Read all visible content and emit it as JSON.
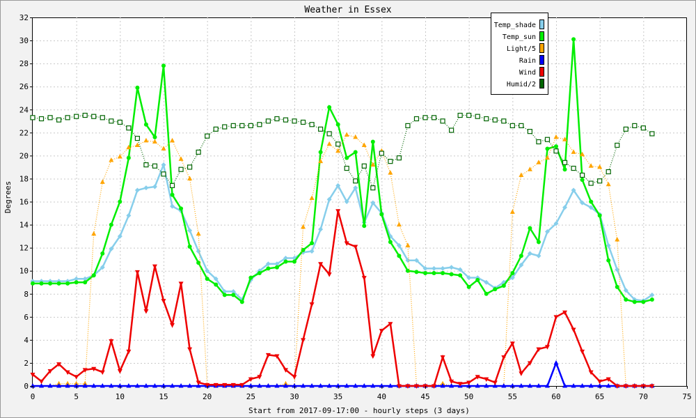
{
  "chart_data": {
    "type": "line",
    "title": "Weather in Essex",
    "xlabel": "Start from 2017-09-17:00 - hourly steps (3 days)",
    "ylabel": "Degrees",
    "xlim": [
      0,
      75
    ],
    "ylim": [
      0,
      32
    ],
    "xticks": [
      0,
      5,
      10,
      15,
      20,
      25,
      30,
      35,
      40,
      45,
      50,
      55,
      60,
      65,
      70,
      75
    ],
    "yticks": [
      0,
      2,
      4,
      6,
      8,
      10,
      12,
      14,
      16,
      18,
      20,
      22,
      24,
      26,
      28,
      30,
      32
    ],
    "grid": true,
    "legend_position": "top-right",
    "series": [
      {
        "name": "Temp_shade",
        "color": "#87ceeb",
        "marker": "diamond",
        "line": "solid",
        "values": [
          9.1,
          9.1,
          9.1,
          9.1,
          9.1,
          9.3,
          9.3,
          9.6,
          10.3,
          11.9,
          13.0,
          14.8,
          17.0,
          17.2,
          17.3,
          19.2,
          15.6,
          15.2,
          13.5,
          11.7,
          10.0,
          9.3,
          8.2,
          8.2,
          7.5,
          9.2,
          10.0,
          10.6,
          10.6,
          11.1,
          11.1,
          11.6,
          11.7,
          13.6,
          16.2,
          17.4,
          16.0,
          17.2,
          14.2,
          15.9,
          15.0,
          13.0,
          12.2,
          10.9,
          10.9,
          10.2,
          10.2,
          10.2,
          10.3,
          10.1,
          9.4,
          9.4,
          9.0,
          8.5,
          9.0,
          9.4,
          10.5,
          11.5,
          11.3,
          13.4,
          14.1,
          15.5,
          17.0,
          15.9,
          15.5,
          14.9,
          12.2,
          10.1,
          8.3,
          7.5,
          7.4,
          7.9
        ]
      },
      {
        "name": "Temp_sun",
        "color": "#00ee00",
        "marker": "circle",
        "line": "solid",
        "values": [
          8.9,
          8.9,
          8.9,
          8.9,
          8.9,
          9.0,
          9.0,
          9.6,
          11.5,
          14.0,
          16.0,
          19.8,
          25.9,
          22.7,
          21.6,
          27.8,
          16.6,
          15.4,
          12.1,
          10.7,
          9.3,
          8.8,
          7.9,
          7.9,
          7.3,
          9.4,
          9.8,
          10.2,
          10.3,
          10.8,
          10.8,
          11.8,
          12.4,
          20.3,
          24.2,
          22.7,
          19.8,
          20.3,
          13.9,
          21.2,
          14.9,
          12.5,
          11.3,
          10.0,
          9.9,
          9.8,
          9.8,
          9.8,
          9.7,
          9.6,
          8.6,
          9.2,
          8.0,
          8.4,
          8.7,
          9.8,
          11.3,
          13.7,
          12.5,
          20.6,
          20.8,
          18.8,
          30.1,
          17.9,
          16.0,
          14.8,
          10.9,
          8.6,
          7.5,
          7.3,
          7.3,
          7.5
        ]
      },
      {
        "name": "Light/5",
        "color": "#ffa500",
        "marker": "triangle-up",
        "line": "dotted",
        "values": [
          0,
          0,
          0,
          0.2,
          0.2,
          0.2,
          0.2,
          13.2,
          17.7,
          19.6,
          19.9,
          20.7,
          20.9,
          21.3,
          21.2,
          20.6,
          21.3,
          19.7,
          18.0,
          13.2,
          0,
          0,
          0,
          0,
          0,
          0,
          0,
          0,
          0,
          0.2,
          0,
          13.8,
          16.3,
          19.5,
          21.0,
          20.4,
          21.8,
          21.6,
          20.9,
          19.2,
          20.4,
          18.5,
          14.0,
          12.2,
          0,
          0,
          0,
          0.2,
          0,
          0,
          0,
          0,
          0,
          0,
          0,
          15.1,
          18.3,
          18.8,
          19.4,
          19.8,
          21.6,
          21.4,
          20.3,
          20.1,
          19.1,
          19.0,
          17.5,
          12.7,
          0,
          0,
          0,
          0
        ]
      },
      {
        "name": "Rain",
        "color": "#0000ff",
        "marker": "triangle-up",
        "line": "solid",
        "values": [
          0,
          0,
          0,
          0,
          0,
          0,
          0,
          0,
          0,
          0,
          0,
          0,
          0,
          0,
          0,
          0,
          0,
          0,
          0,
          0,
          0,
          0,
          0,
          0,
          0,
          0,
          0,
          0,
          0,
          0,
          0,
          0,
          0,
          0,
          0,
          0,
          0,
          0,
          0,
          0,
          0,
          0,
          0,
          0,
          0,
          0,
          0,
          0,
          0,
          0,
          0,
          0,
          0,
          0,
          0,
          0,
          0,
          0,
          0,
          0,
          2.0,
          0,
          0,
          0,
          0,
          0,
          0,
          0,
          0,
          0,
          0,
          0
        ]
      },
      {
        "name": "Wind",
        "color": "#ee0000",
        "marker": "triangle-down",
        "line": "solid",
        "values": [
          1.0,
          0.4,
          1.3,
          1.9,
          1.2,
          0.8,
          1.4,
          1.5,
          1.2,
          3.9,
          1.3,
          3.0,
          9.9,
          6.5,
          10.4,
          7.4,
          5.3,
          8.9,
          3.2,
          0.3,
          0.1,
          0.1,
          0.1,
          0.1,
          0.1,
          0.6,
          0.8,
          2.7,
          2.6,
          1.4,
          0.8,
          4.0,
          7.1,
          10.6,
          9.7,
          15.2,
          12.4,
          12.1,
          9.4,
          2.6,
          4.8,
          5.4,
          0,
          0,
          0,
          0,
          0,
          2.5,
          0.4,
          0.2,
          0.3,
          0.8,
          0.6,
          0.3,
          2.5,
          3.7,
          1.1,
          2.0,
          3.2,
          3.4,
          6.0,
          6.4,
          4.9,
          3.0,
          1.2,
          0.4,
          0.6,
          0,
          0,
          0,
          0,
          0
        ]
      },
      {
        "name": "Humid/2",
        "color": "#006400",
        "marker": "square-open",
        "line": "dotted",
        "values": [
          23.3,
          23.2,
          23.3,
          23.1,
          23.3,
          23.4,
          23.5,
          23.4,
          23.3,
          23.0,
          22.9,
          22.4,
          21.5,
          19.2,
          19.1,
          18.4,
          17.4,
          18.8,
          19.0,
          20.3,
          21.7,
          22.3,
          22.5,
          22.6,
          22.6,
          22.6,
          22.7,
          23.0,
          23.2,
          23.1,
          23.0,
          22.9,
          22.7,
          22.3,
          21.9,
          21.0,
          18.9,
          17.8,
          19.1,
          17.2,
          20.2,
          19.5,
          19.8,
          22.6,
          23.2,
          23.3,
          23.3,
          23.0,
          22.2,
          23.5,
          23.5,
          23.4,
          23.2,
          23.1,
          23.0,
          22.6,
          22.6,
          22.1,
          21.2,
          21.4,
          20.4,
          19.4,
          18.9,
          18.3,
          17.6,
          17.8,
          18.6,
          20.9,
          22.3,
          22.6,
          22.4,
          21.9
        ]
      }
    ]
  }
}
